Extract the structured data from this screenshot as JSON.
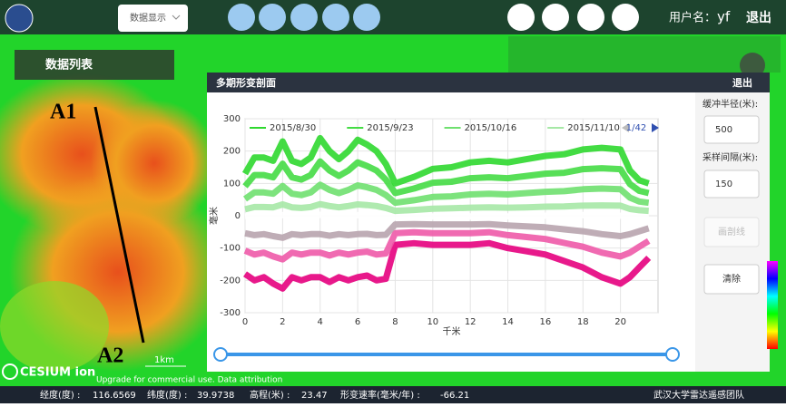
{
  "header": {
    "dropdown": "数据显示",
    "username_label": "用户名：",
    "username": "yf",
    "logout": "退出"
  },
  "sidebar": {
    "title": "数据列表"
  },
  "map": {
    "start_label": "A1",
    "end_label": "A2",
    "scale": "1km",
    "logo": "CESIUM ion",
    "attribution": "Upgrade for commercial use. Data attribution"
  },
  "panel": {
    "title": "多期形变剖面",
    "close": "退出",
    "buffer_label": "缓冲半径(米):",
    "buffer_value": "500",
    "spacing_label": "采样间隔(米):",
    "spacing_value": "150",
    "draw_button": "画剖线",
    "clear_button": "清除"
  },
  "chart_data": {
    "type": "line",
    "xlabel": "千米",
    "ylabel": "毫米",
    "legend_page": "1/42",
    "xlim": [
      0,
      22
    ],
    "ylim": [
      -300,
      300
    ],
    "xticks": [
      0,
      2,
      4,
      6,
      8,
      10,
      12,
      14,
      16,
      18,
      20
    ],
    "yticks": [
      -300,
      -200,
      -100,
      0,
      100,
      200,
      300
    ],
    "grid": true,
    "x": [
      0,
      0.5,
      1,
      1.5,
      2,
      2.5,
      3,
      3.5,
      4,
      4.5,
      5,
      5.5,
      6,
      6.5,
      7,
      7.5,
      8,
      9,
      10,
      11,
      12,
      13,
      14,
      15,
      16,
      17,
      18,
      19,
      20,
      20.5,
      21,
      21.5
    ],
    "series": [
      {
        "name": "2015/8/30",
        "color": "#2fd82f",
        "values": [
          130,
          180,
          180,
          170,
          230,
          170,
          160,
          180,
          240,
          200,
          175,
          200,
          235,
          220,
          200,
          160,
          100,
          120,
          145,
          150,
          165,
          170,
          165,
          175,
          185,
          190,
          205,
          210,
          205,
          140,
          110,
          100
        ]
      },
      {
        "name": "2015/9/23",
        "color": "#45dc45",
        "values": [
          91,
          126,
          126,
          119,
          161,
          119,
          112,
          126,
          168,
          140,
          123,
          140,
          165,
          154,
          140,
          112,
          70,
          84,
          102,
          105,
          116,
          119,
          116,
          123,
          130,
          133,
          144,
          147,
          144,
          98,
          77,
          70
        ]
      },
      {
        "name": "2015/10/16",
        "color": "#6fe06f",
        "values": [
          52,
          72,
          72,
          68,
          92,
          68,
          64,
          72,
          96,
          80,
          70,
          80,
          94,
          88,
          80,
          64,
          40,
          48,
          58,
          60,
          66,
          68,
          66,
          70,
          74,
          76,
          82,
          84,
          82,
          56,
          44,
          40
        ]
      },
      {
        "name": "2015/11/10",
        "color": "#a6e8a6",
        "values": [
          20,
          27,
          27,
          26,
          35,
          26,
          24,
          27,
          36,
          30,
          26,
          30,
          35,
          33,
          30,
          24,
          15,
          18,
          22,
          23,
          25,
          26,
          25,
          26,
          28,
          29,
          31,
          32,
          31,
          21,
          17,
          15
        ]
      },
      {
        "color": "#ffffff",
        "values": [
          -2,
          0,
          -3,
          0,
          2,
          0,
          -2,
          0,
          3,
          0,
          -2,
          0,
          2,
          0,
          -1,
          0,
          -5,
          -3,
          -2,
          -3,
          -2,
          0,
          -2,
          -1,
          0,
          0,
          2,
          1,
          0,
          -2,
          -3,
          -5
        ]
      },
      {
        "color": "#b8a4ae",
        "values": [
          -54,
          -60,
          -57,
          -63,
          -68,
          -57,
          -60,
          -57,
          -57,
          -62,
          -57,
          -60,
          -57,
          -56,
          -60,
          -59,
          -27,
          -26,
          -27,
          -27,
          -27,
          -26,
          -30,
          -33,
          -36,
          -42,
          -48,
          -57,
          -63,
          -57,
          -48,
          -39
        ]
      },
      {
        "color": "#ee5aa8",
        "values": [
          -108,
          -120,
          -114,
          -126,
          -135,
          -114,
          -120,
          -114,
          -114,
          -123,
          -114,
          -120,
          -114,
          -111,
          -120,
          -117,
          -54,
          -51,
          -54,
          -54,
          -54,
          -51,
          -60,
          -66,
          -72,
          -84,
          -96,
          -114,
          -126,
          -114,
          -96,
          -78
        ]
      },
      {
        "color": "#e6007e",
        "values": [
          -180,
          -200,
          -190,
          -210,
          -225,
          -190,
          -200,
          -190,
          -190,
          -205,
          -190,
          -200,
          -190,
          -185,
          -200,
          -195,
          -90,
          -85,
          -90,
          -90,
          -90,
          -85,
          -100,
          -110,
          -120,
          -140,
          -160,
          -190,
          -210,
          -190,
          -160,
          -130
        ]
      }
    ]
  },
  "status": {
    "longitude_label": "经度(度) :",
    "longitude": 116.6569,
    "latitude_label": "纬度(度) :",
    "latitude": 39.9738,
    "elevation_label": "高程(米) :",
    "elevation": 23.47,
    "rate_label": "形变速率(毫米/年) :",
    "rate": -66.21,
    "team": "武汉大学雷达遥感团队"
  }
}
